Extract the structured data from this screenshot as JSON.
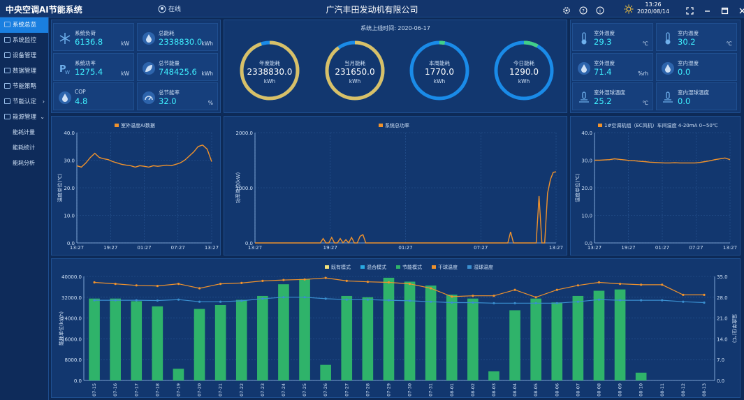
{
  "header": {
    "title": "中央空调AI节能系统",
    "status": "在线",
    "company": "广汽丰田发动机有限公司",
    "time": "13:26",
    "date": "2020/08/14",
    "icons": [
      "settings-icon",
      "help-icon",
      "info-icon"
    ],
    "weather_icon": "sun-icon"
  },
  "sidebar": {
    "items": [
      {
        "label": "系统总览",
        "icon": "overview-icon",
        "active": true
      },
      {
        "label": "系统监控",
        "icon": "monitor-icon"
      },
      {
        "label": "设备管理",
        "icon": "device-icon"
      },
      {
        "label": "数据管理",
        "icon": "data-icon"
      },
      {
        "label": "节能策略",
        "icon": "strategy-icon"
      },
      {
        "label": "节能认定",
        "icon": "certify-icon",
        "chevron": "›"
      },
      {
        "label": "能源管理",
        "icon": "energy-icon",
        "chevron": "⌄"
      }
    ],
    "subitems": [
      {
        "label": "能耗计量"
      },
      {
        "label": "能耗统计"
      },
      {
        "label": "能耗分析"
      }
    ]
  },
  "left_cards": [
    {
      "label": "系统负荷",
      "value": "6136.8",
      "unit": "kW",
      "icon": "snowflake-icon"
    },
    {
      "label": "总能耗",
      "value": "2338830.0",
      "unit": "kWh",
      "icon": "drop-icon"
    },
    {
      "label": "系统功率",
      "value": "1275.4",
      "unit": "kW",
      "icon": "power-icon"
    },
    {
      "label": "总节能量",
      "value": "748425.6",
      "unit": "kWh",
      "icon": "leaf-icon"
    },
    {
      "label": "COP",
      "value": "4.8",
      "unit": "",
      "icon": "drop-icon"
    },
    {
      "label": "总节能率",
      "value": "32.0",
      "unit": "%",
      "icon": "gauge-icon"
    }
  ],
  "gauges": {
    "title": "系统上线时间: 2020-06-17",
    "items": [
      {
        "label": "年度能耗",
        "value": "2338830.0",
        "unit": "kWh",
        "fill": 0.95
      },
      {
        "label": "当月能耗",
        "value": "231650.0",
        "unit": "kWh",
        "fill": 0.9
      },
      {
        "label": "本周能耗",
        "value": "1770.0",
        "unit": "kWh",
        "fill": 0.03
      },
      {
        "label": "今日能耗",
        "value": "1290.0",
        "unit": "kWh",
        "fill": 0.08
      }
    ]
  },
  "right_cards": [
    {
      "label": "室外温度",
      "value": "29.3",
      "unit": "℃",
      "icon": "thermometer-icon"
    },
    {
      "label": "室内温度",
      "value": "30.2",
      "unit": "℃",
      "icon": "thermometer-icon"
    },
    {
      "label": "室外湿度",
      "value": "71.4",
      "unit": "%rh",
      "icon": "drop-icon"
    },
    {
      "label": "室内湿度",
      "value": "0.0",
      "unit": "",
      "icon": "drop-icon"
    },
    {
      "label": "室外湿球温度",
      "value": "25.2",
      "unit": "℃",
      "icon": "wetbulb-icon"
    },
    {
      "label": "室内湿球温度",
      "value": "0.0",
      "unit": "",
      "icon": "wetbulb-icon"
    }
  ],
  "colors": {
    "orange": "#f0922c",
    "green": "#2fb36a",
    "blue": "#3a8fd0",
    "accent": "#3ff0ff"
  },
  "chart_data": [
    {
      "type": "line",
      "legend": "室外温度AI数据",
      "ylabel": "温度单位(℃)",
      "ylim": [
        0,
        40
      ],
      "yticks": [
        "0.0",
        "10.0",
        "20.0",
        "30.0",
        "40.0"
      ],
      "xticks": [
        "13:27",
        "19:27",
        "01:27",
        "07:27",
        "13:27"
      ],
      "y": [
        28,
        27.5,
        29,
        31,
        32.5,
        31,
        30.5,
        30.2,
        29.5,
        29,
        28.5,
        28.2,
        28,
        27.5,
        28,
        27.8,
        27.5,
        28,
        27.8,
        28,
        28.2,
        28,
        28.5,
        29,
        30,
        31.5,
        33,
        35,
        35.5,
        34,
        29.5
      ]
    },
    {
      "type": "line",
      "legend": "系统总功率",
      "ylabel": "功率单位(kW)",
      "ylim": [
        0,
        2000
      ],
      "yticks": [
        "0.0",
        "1000.0",
        "2000.0"
      ],
      "xticks": [
        "13:27",
        "19:27",
        "01:27",
        "07:27",
        "13:27"
      ],
      "y": [
        0,
        0,
        0,
        0,
        0,
        0,
        0,
        0,
        0,
        0,
        0,
        0,
        0,
        0,
        0,
        0,
        0,
        0,
        0,
        0,
        0,
        0,
        0,
        0,
        80,
        0,
        0,
        100,
        0,
        0,
        80,
        0,
        60,
        0,
        100,
        0,
        0,
        120,
        150,
        0,
        0,
        0,
        0,
        0,
        0,
        0,
        0,
        0,
        0,
        0,
        0,
        0,
        0,
        0,
        0,
        0,
        0,
        0,
        0,
        0,
        0,
        0,
        0,
        0,
        0,
        0,
        0,
        0,
        0,
        0,
        0,
        0,
        0,
        0,
        0,
        0,
        0,
        0,
        0,
        0,
        0,
        0,
        0,
        0,
        0,
        0,
        0,
        0,
        0,
        0,
        200,
        0,
        0,
        0,
        0,
        0,
        0,
        0,
        0,
        0,
        850,
        0,
        0,
        900,
        1150,
        1280,
        1290
      ]
    },
    {
      "type": "line",
      "legend": "1#空调机组（EC风机）车间温度 4-20mA 0~50℃",
      "ylabel": "温度单位(℃)",
      "ylim": [
        0,
        40
      ],
      "yticks": [
        "0.0",
        "10.0",
        "20.0",
        "30.0",
        "40.0"
      ],
      "xticks": [
        "13:27",
        "19:27",
        "01:27",
        "07:27",
        "13:27"
      ],
      "y": [
        30,
        30,
        30.1,
        30.2,
        30.5,
        30.3,
        30.1,
        29.9,
        29.8,
        29.6,
        29.5,
        29.3,
        29.2,
        29.1,
        29,
        29,
        29.1,
        29,
        29,
        29,
        29,
        29.2,
        29.5,
        29.8,
        30.2,
        30.5,
        30.8,
        30.2
      ]
    },
    {
      "type": "bar",
      "legend": [
        "既有模式",
        "混合模式",
        "节能模式",
        "干球温度",
        "湿球温度"
      ],
      "legend_colors": [
        "#f3e27a",
        "#29a9e0",
        "#2fb36a",
        "#f0922c",
        "#3a8fd0"
      ],
      "ylabel": "能耗单位(kWh)",
      "ylabel2": "温度单位(℃)",
      "ylim": [
        0,
        40000
      ],
      "ylim2": [
        0,
        35
      ],
      "yticks": [
        "0.0",
        "8000.0",
        "16000.0",
        "24000.0",
        "32000.0",
        "40000.0"
      ],
      "yticks2": [
        "0.0",
        "7.0",
        "14.0",
        "21.0",
        "28.0",
        "35.0"
      ],
      "categories": [
        "07-15",
        "07-16",
        "07-17",
        "07-18",
        "07-19",
        "07-20",
        "07-21",
        "07-22",
        "07-23",
        "07-24",
        "07-25",
        "07-26",
        "07-27",
        "07-28",
        "07-29",
        "07-30",
        "07-31",
        "08-01",
        "08-02",
        "08-03",
        "08-04",
        "08-05",
        "08-06",
        "08-07",
        "08-08",
        "08-09",
        "08-10",
        "08-11",
        "08-12",
        "08-13"
      ],
      "values": [
        31500,
        31500,
        30500,
        28500,
        4500,
        27500,
        29000,
        31000,
        32500,
        37000,
        39000,
        6000,
        32500,
        32000,
        39500,
        38000,
        36500,
        33000,
        31500,
        3500,
        27000,
        31500,
        30000,
        32500,
        34500,
        35000,
        3000,
        0,
        0,
        0
      ],
      "dry": [
        33,
        32.5,
        32,
        31.8,
        32.5,
        31,
        32.5,
        32.8,
        33.5,
        33.8,
        34,
        34.5,
        33.5,
        33.2,
        33,
        32.5,
        31,
        28.2,
        28.5,
        28.5,
        30.5,
        28,
        30.5,
        32,
        33,
        32.5,
        32.2,
        32.2,
        28.8,
        28.8
      ],
      "wet": [
        27,
        27,
        27,
        26.9,
        27.2,
        26.5,
        26.5,
        26.8,
        27.5,
        28,
        28,
        27.5,
        27.2,
        27.2,
        27,
        26.8,
        26.5,
        26.2,
        26.2,
        26,
        26,
        26,
        26,
        26.5,
        27.2,
        27,
        27,
        27,
        26.5,
        26.2
      ]
    }
  ]
}
